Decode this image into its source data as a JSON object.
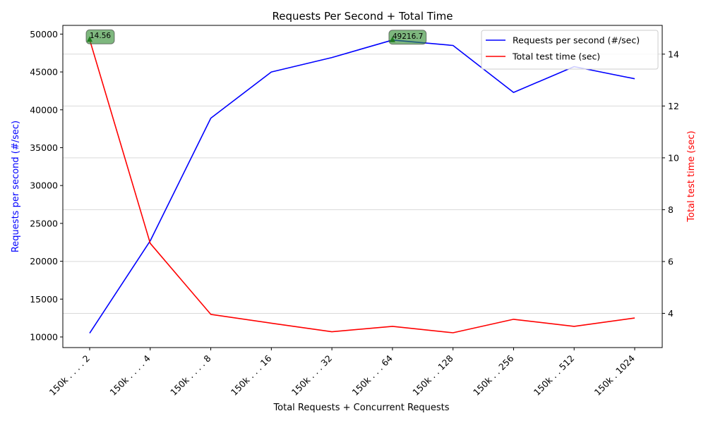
{
  "chart_data": {
    "type": "line",
    "title": "Requests Per Second + Total Time",
    "xlabel": "Total Requests + Concurrent Requests",
    "categories": [
      "150k . . . . 2",
      "150k . . . . 4",
      "150k . . . . 8",
      "150k . . . 16",
      "150k . . . 32",
      "150k . . . 64",
      "150k . . 128",
      "150k . . 256",
      "150k . . 512",
      "150k . 1024"
    ],
    "left_axis": {
      "label": "Requests per second (#/sec)",
      "color": "#0000ff",
      "ylim": [
        8600,
        51150
      ],
      "ticks": [
        10000,
        15000,
        20000,
        25000,
        30000,
        35000,
        40000,
        45000,
        50000
      ]
    },
    "right_axis": {
      "label": "Total test time (sec)",
      "color": "#ff0000",
      "ylim": [
        2.68,
        15.11
      ],
      "ticks": [
        4,
        6,
        8,
        10,
        12,
        14
      ],
      "grid": true
    },
    "series": [
      {
        "name": "Requests per second (#/sec)",
        "axis": "left",
        "color": "#0000ff",
        "values": [
          10500,
          22700,
          38900,
          45000,
          46900,
          49216.7,
          48500,
          42300,
          45700,
          44100
        ]
      },
      {
        "name": "Total test time (sec)",
        "axis": "right",
        "color": "#ff0000",
        "values": [
          14.56,
          6.7,
          3.96,
          3.62,
          3.29,
          3.5,
          3.25,
          3.77,
          3.5,
          3.82
        ]
      }
    ],
    "annotations": [
      {
        "text": "14.56",
        "series": 1,
        "index": 0
      },
      {
        "text": "49216.7",
        "series": 0,
        "index": 5
      }
    ],
    "annotation_color": "#2e8b2e",
    "legend_position": "upper-right"
  }
}
